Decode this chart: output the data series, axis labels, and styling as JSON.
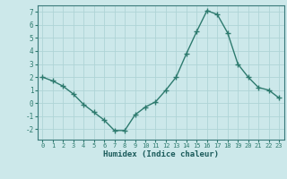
{
  "x": [
    0,
    1,
    2,
    3,
    4,
    5,
    6,
    7,
    8,
    9,
    10,
    11,
    12,
    13,
    14,
    15,
    16,
    17,
    18,
    19,
    20,
    21,
    22,
    23
  ],
  "y": [
    2.0,
    1.7,
    1.3,
    0.7,
    -0.1,
    -0.7,
    -1.3,
    -2.1,
    -2.1,
    -0.9,
    -0.3,
    0.1,
    1.0,
    2.0,
    3.8,
    5.5,
    7.1,
    6.8,
    5.4,
    3.0,
    2.0,
    1.2,
    1.0,
    0.4
  ],
  "xlabel": "Humidex (Indice chaleur)",
  "ylim": [
    -2.8,
    7.5
  ],
  "xlim": [
    -0.5,
    23.5
  ],
  "yticks": [
    -2,
    -1,
    0,
    1,
    2,
    3,
    4,
    5,
    6,
    7
  ],
  "xticks": [
    0,
    1,
    2,
    3,
    4,
    5,
    6,
    7,
    8,
    9,
    10,
    11,
    12,
    13,
    14,
    15,
    16,
    17,
    18,
    19,
    20,
    21,
    22,
    23
  ],
  "line_color": "#2d7a6e",
  "marker": "+",
  "bg_color": "#cce8ea",
  "grid_color": "#afd4d6",
  "spine_color": "#3a7a7a",
  "tick_label_color": "#2d7a6e",
  "xlabel_color": "#1a5a5a"
}
